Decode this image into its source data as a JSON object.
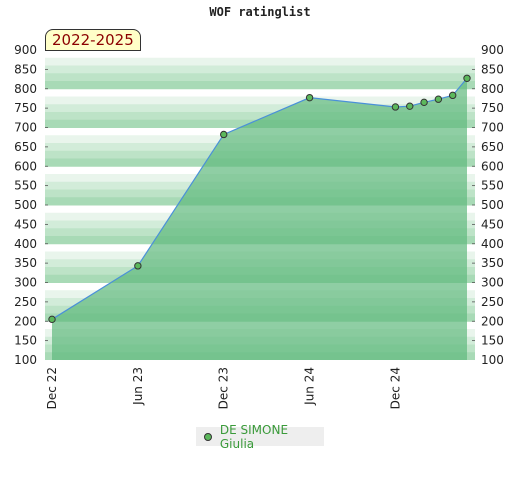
{
  "chart_data": {
    "type": "area",
    "title": "WOF ratinglist",
    "period_label": "2022-2025",
    "ylim": [
      100,
      900
    ],
    "y_ticks": [
      100,
      150,
      200,
      250,
      300,
      350,
      400,
      450,
      500,
      550,
      600,
      650,
      700,
      750,
      800,
      850,
      900
    ],
    "x_ticks": [
      "Dec 22",
      "Jun 23",
      "Dec 23",
      "Jun 24",
      "Dec 24"
    ],
    "x_tick_index": [
      0,
      6,
      12,
      18,
      24
    ],
    "legend_position": "bottom-center",
    "series": [
      {
        "name": "DE SIMONE Giulia",
        "color": "#5cb85c",
        "points": [
          {
            "x": 0,
            "y": 205
          },
          {
            "x": 6,
            "y": 343
          },
          {
            "x": 12,
            "y": 682
          },
          {
            "x": 18,
            "y": 777
          },
          {
            "x": 24,
            "y": 753
          },
          {
            "x": 25,
            "y": 755
          },
          {
            "x": 26,
            "y": 765
          },
          {
            "x": 27,
            "y": 773
          },
          {
            "x": 28,
            "y": 783
          },
          {
            "x": 29,
            "y": 827
          }
        ]
      }
    ]
  },
  "colors": {
    "line": "#4a90d9",
    "area_fill": "#5fb97e",
    "marker": "#5cb85c",
    "axis_text": "#222222",
    "legend_text": "#3a9a3a"
  }
}
